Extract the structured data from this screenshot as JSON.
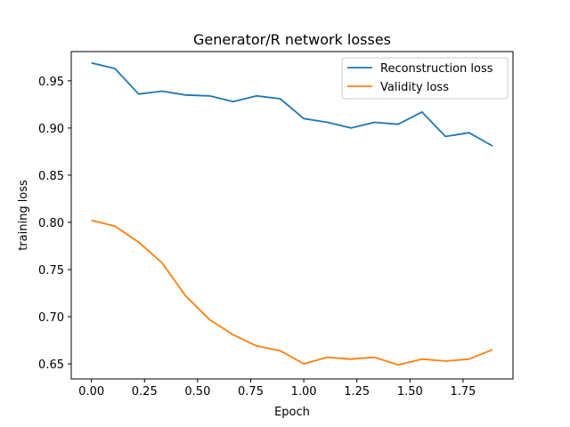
{
  "chart_data": {
    "type": "line",
    "title": "Generator/R network losses",
    "xlabel": "Epoch",
    "ylabel": "training loss",
    "xlim": [
      -0.095,
      1.985
    ],
    "ylim": [
      0.634,
      0.981
    ],
    "xticks": [
      "0.00",
      "0.25",
      "0.50",
      "0.75",
      "1.00",
      "1.25",
      "1.50",
      "1.75"
    ],
    "yticks": [
      "0.65",
      "0.70",
      "0.75",
      "0.80",
      "0.85",
      "0.90",
      "0.95"
    ],
    "grid": false,
    "legend_position": "top-right",
    "x": [
      0.0,
      0.111,
      0.222,
      0.333,
      0.444,
      0.556,
      0.667,
      0.778,
      0.889,
      1.0,
      1.111,
      1.222,
      1.333,
      1.444,
      1.556,
      1.667,
      1.778,
      1.889
    ],
    "series": [
      {
        "name": "Reconstruction loss",
        "color": "#1f77b4",
        "values": [
          0.969,
          0.963,
          0.936,
          0.939,
          0.935,
          0.934,
          0.928,
          0.934,
          0.931,
          0.91,
          0.906,
          0.9,
          0.906,
          0.904,
          0.917,
          0.891,
          0.895,
          0.881
        ]
      },
      {
        "name": "Validity loss",
        "color": "#ff7f0e",
        "values": [
          0.802,
          0.796,
          0.779,
          0.757,
          0.722,
          0.697,
          0.681,
          0.669,
          0.664,
          0.65,
          0.657,
          0.655,
          0.657,
          0.649,
          0.655,
          0.653,
          0.655,
          0.665
        ]
      }
    ]
  }
}
